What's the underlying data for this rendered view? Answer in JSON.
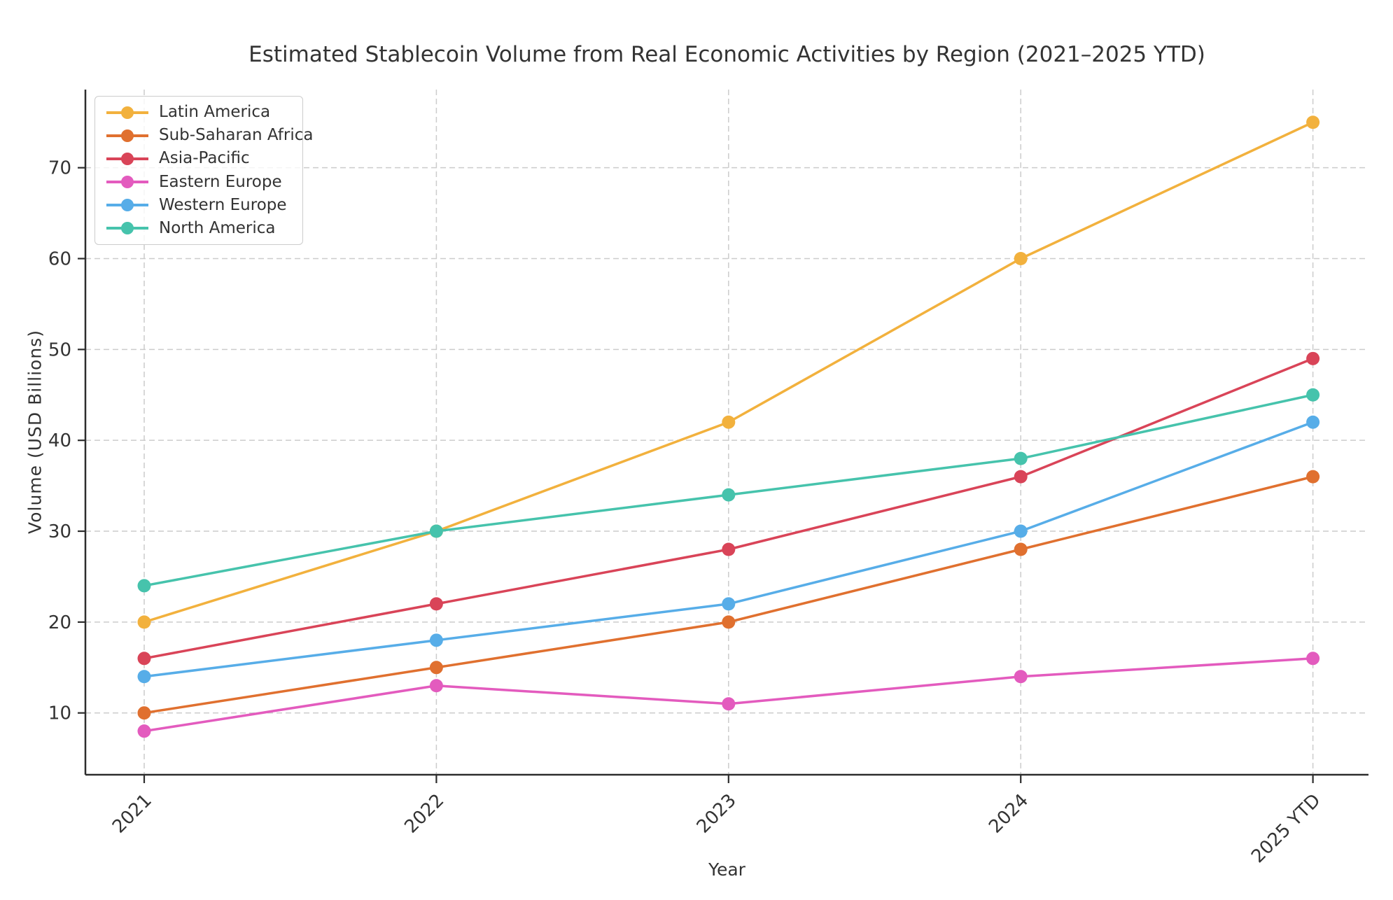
{
  "chart_data": {
    "type": "line",
    "title": "Estimated Stablecoin Volume from Real Economic Activities by Region (2021–2025 YTD)",
    "xlabel": "Year",
    "ylabel": "Volume (USD Billions)",
    "categories": [
      "2021",
      "2022",
      "2023",
      "2024",
      "2025 YTD"
    ],
    "yticks": [
      10,
      20,
      30,
      40,
      50,
      60,
      70
    ],
    "ylim": [
      3.2,
      78.6
    ],
    "grid": true,
    "grid_style": "dashed",
    "legend_position": "upper left",
    "series": [
      {
        "name": "Latin America",
        "color": "#F2B13D",
        "values": [
          20,
          30,
          42,
          60,
          75
        ]
      },
      {
        "name": "Sub-Saharan Africa",
        "color": "#E0702F",
        "values": [
          10,
          15,
          20,
          28,
          36
        ]
      },
      {
        "name": "Asia-Pacific",
        "color": "#D94458",
        "values": [
          16,
          22,
          28,
          36,
          49
        ]
      },
      {
        "name": "Eastern Europe",
        "color": "#E35BBE",
        "values": [
          8,
          13,
          11,
          14,
          16
        ]
      },
      {
        "name": "Western Europe",
        "color": "#57ADE8",
        "values": [
          14,
          18,
          22,
          30,
          42
        ]
      },
      {
        "name": "North America",
        "color": "#46C3AC",
        "values": [
          24,
          30,
          34,
          38,
          45
        ]
      }
    ],
    "colors": {
      "grid": "#cccccc",
      "spine": "#2d2d2d",
      "text": "#333333",
      "background": "#ffffff"
    }
  }
}
